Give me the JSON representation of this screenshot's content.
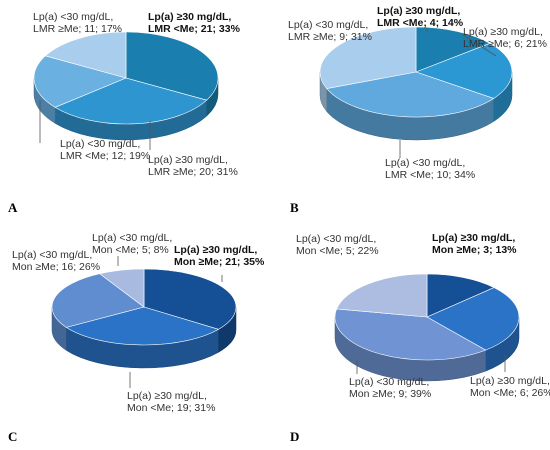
{
  "chart_data": [
    {
      "panel": "A",
      "type": "pie",
      "slices": [
        {
          "label": [
            "Lp(a) ≥30 mg/dL,",
            "LMR <Me; 21; 33%"
          ],
          "value": 33,
          "bold": true,
          "color": "#1a7fae"
        },
        {
          "label": [
            "Lp(a) ≥30 mg/dL,",
            "LMR ≥Me; 20; 31%"
          ],
          "value": 31,
          "bold": false,
          "color": "#2f95d0"
        },
        {
          "label": [
            "Lp(a) <30 mg/dL,",
            "LMR <Me; 12; 19%"
          ],
          "value": 19,
          "bold": false,
          "color": "#6ab1e2"
        },
        {
          "label": [
            "Lp(a) <30 mg/dL,",
            "LMR ≥Me; 11; 17%"
          ],
          "value": 17,
          "bold": false,
          "color": "#a9cdec"
        }
      ]
    },
    {
      "panel": "B",
      "type": "pie",
      "slices": [
        {
          "label": [
            "Lp(a) ≥30 mg/dL,",
            "LMR <Me; 4; 14%"
          ],
          "value": 14,
          "bold": true,
          "color": "#1a7fae"
        },
        {
          "label": [
            "Lp(a) ≥30 mg/dL,",
            "LMR ≥Me; 6; 21%"
          ],
          "value": 21,
          "bold": false,
          "color": "#2b97d3"
        },
        {
          "label": [
            "Lp(a) <30 mg/dL,",
            "LMR <Me; 10; 34%"
          ],
          "value": 34,
          "bold": false,
          "color": "#5fa9de"
        },
        {
          "label": [
            "Lp(a) <30 mg/dL,",
            "LMR ≥Me; 9; 31%"
          ],
          "value": 31,
          "bold": false,
          "color": "#a9cdec"
        }
      ]
    },
    {
      "panel": "C",
      "type": "pie",
      "slices": [
        {
          "label": [
            "Lp(a) ≥30 mg/dL,",
            "Mon ≥Me; 21; 35%"
          ],
          "value": 35,
          "bold": true,
          "color": "#154f95"
        },
        {
          "label": [
            "Lp(a) ≥30 mg/dL,",
            "Mon <Me; 19; 31%"
          ],
          "value": 31,
          "bold": false,
          "color": "#2a73c6"
        },
        {
          "label": [
            "Lp(a) <30 mg/dL,",
            "Mon ≥Me; 16; 26%"
          ],
          "value": 26,
          "bold": false,
          "color": "#5f8dd0"
        },
        {
          "label": [
            "Lp(a) <30 mg/dL,",
            "Mon <Me; 5; 8%"
          ],
          "value": 8,
          "bold": false,
          "color": "#a8badf"
        }
      ]
    },
    {
      "panel": "D",
      "type": "pie",
      "slices": [
        {
          "label": [
            "Lp(a) ≥30 mg/dL,",
            "Mon ≥Me; 3; 13%"
          ],
          "value": 13,
          "bold": true,
          "color": "#154f95"
        },
        {
          "label": [
            "Lp(a) ≥30 mg/dL,",
            "Mon <Me; 6; 26%"
          ],
          "value": 26,
          "bold": false,
          "color": "#2a73c6"
        },
        {
          "label": [
            "Lp(a) <30 mg/dL,",
            "Mon ≥Me; 9; 39%"
          ],
          "value": 39,
          "bold": false,
          "color": "#6f93d3"
        },
        {
          "label": [
            "Lp(a) <30 mg/dL,",
            "Mon <Me; 5; 22%"
          ],
          "value": 22,
          "bold": false,
          "color": "#adbde2"
        }
      ]
    }
  ]
}
